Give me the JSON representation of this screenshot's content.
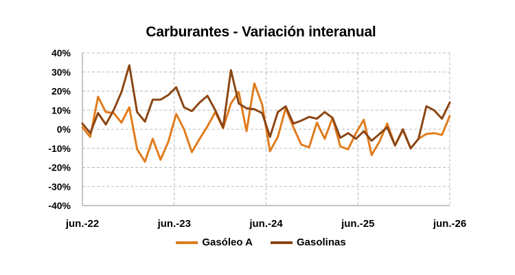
{
  "chart_data": {
    "type": "line",
    "title": "Carburantes - Variación interanual",
    "xlabel": "",
    "ylabel": "",
    "x_ticks": [
      "jun.-22",
      "jun.-23",
      "jun.-24",
      "jun.-25",
      "jun.-26"
    ],
    "x_range": [
      "2022-06",
      "2026-06"
    ],
    "ylim": [
      -40,
      40
    ],
    "y_ticks": [
      "-40%",
      "-30%",
      "-20%",
      "-10%",
      "0%",
      "10%",
      "20%",
      "30%",
      "40%"
    ],
    "grid": true,
    "legend_position": "bottom",
    "series": [
      {
        "name": "Gasóleo A",
        "color": "#e07b1c",
        "values": [
          1,
          -4,
          17,
          9,
          8.5,
          3.5,
          11.5,
          -10.5,
          -17,
          -5,
          -16,
          -6.5,
          8,
          0,
          -12,
          -5,
          1.5,
          9,
          0.5,
          13.5,
          19.5,
          -1,
          24,
          13,
          -11.5,
          -4,
          11,
          1,
          -8,
          -9.5,
          3.5,
          -5,
          6,
          -9,
          -10.5,
          -2,
          5,
          -13.5,
          -6.5,
          3,
          -8.5,
          -0.5,
          -10,
          -5,
          -2.5,
          -2,
          -3,
          7
        ]
      },
      {
        "name": "Gasolinas",
        "color": "#8b4513",
        "values": [
          3,
          -2,
          8.5,
          2.5,
          10,
          19.5,
          33.5,
          9,
          4,
          15.5,
          15.5,
          18,
          22,
          11.5,
          9.5,
          14,
          17.5,
          10,
          1,
          31,
          13.5,
          11,
          10.5,
          8.5,
          -4,
          9,
          12,
          3,
          4.5,
          6.5,
          5.5,
          9,
          6,
          -4.5,
          -2,
          -5,
          -1,
          -6,
          -2.5,
          1,
          -8.5,
          0,
          -10,
          -5,
          12,
          10,
          5.5,
          14
        ]
      }
    ]
  }
}
